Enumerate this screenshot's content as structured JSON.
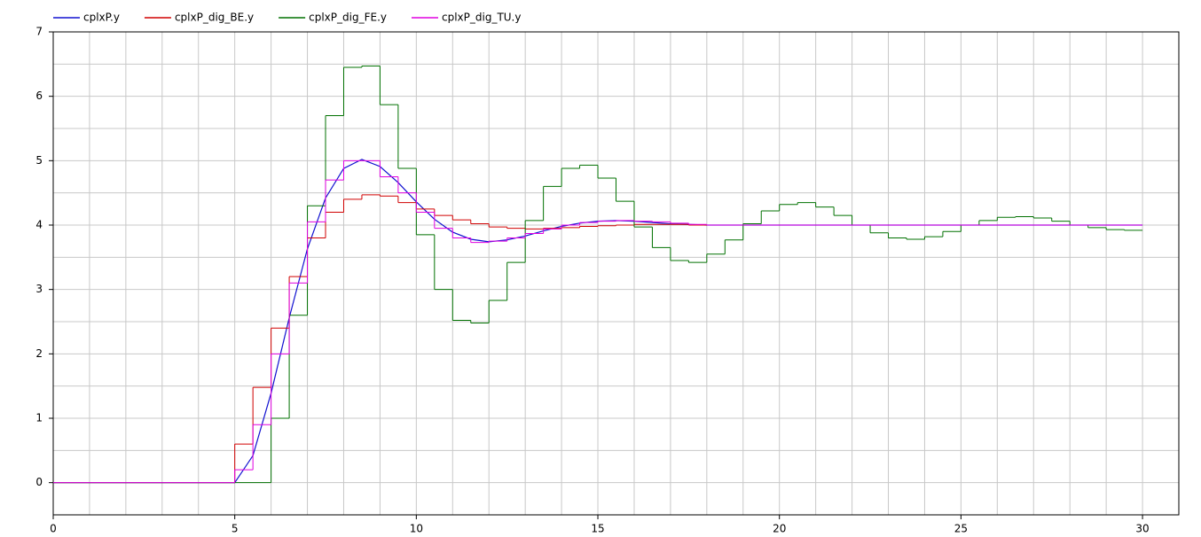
{
  "chart_data": {
    "type": "line",
    "xlim": [
      0,
      31
    ],
    "ylim": [
      -0.5,
      7
    ],
    "xticks": [
      0,
      5,
      10,
      15,
      20,
      25,
      30
    ],
    "yticks": [
      0,
      1,
      2,
      3,
      4,
      5,
      6,
      7
    ],
    "xgrid": [
      1,
      2,
      3,
      4,
      5,
      6,
      7,
      8,
      9,
      10,
      11,
      12,
      13,
      14,
      15,
      16,
      17,
      18,
      19,
      20,
      21,
      22,
      23,
      24,
      25,
      26,
      27,
      28,
      29,
      30
    ],
    "ygrid": [
      0,
      0.5,
      1,
      1.5,
      2,
      2.5,
      3,
      3.5,
      4,
      4.5,
      5,
      5.5,
      6,
      6.5
    ],
    "grid": true,
    "legend": "top-left",
    "series": [
      {
        "name": "cplxP.y",
        "color": "#1010d0",
        "x": [
          0,
          5,
          5.5,
          6,
          6.5,
          7,
          7.5,
          8,
          8.5,
          9,
          9.5,
          10,
          10.5,
          11,
          11.5,
          12,
          12.5,
          13,
          13.5,
          14,
          14.5,
          15,
          15.5,
          16,
          16.5,
          17,
          18,
          30
        ],
        "values": [
          0,
          0,
          0.42,
          1.39,
          2.56,
          3.63,
          4.42,
          4.88,
          5.02,
          4.91,
          4.66,
          4.36,
          4.09,
          3.89,
          3.78,
          3.74,
          3.77,
          3.83,
          3.91,
          3.98,
          4.03,
          4.06,
          4.07,
          4.06,
          4.04,
          4.02,
          4.0,
          4.0
        ]
      },
      {
        "name": "cplxP_dig_BE.y",
        "color": "#d00000",
        "step": true,
        "edges": [
          0,
          5,
          5.5,
          6,
          6.5,
          7,
          7.5,
          8,
          8.5,
          9,
          9.5,
          10,
          10.5,
          11,
          11.5,
          12,
          12.5,
          13,
          13.5,
          14,
          14.5,
          15,
          15.5,
          16,
          16.5,
          17,
          17.5,
          20.5
        ],
        "values": [
          0,
          0.6,
          1.48,
          2.4,
          3.2,
          3.8,
          4.2,
          4.4,
          4.47,
          4.45,
          4.35,
          4.25,
          4.15,
          4.08,
          4.02,
          3.97,
          3.95,
          3.94,
          3.95,
          3.96,
          3.98,
          3.99,
          4.0,
          4.01,
          4.01,
          4.01,
          4.0
        ]
      },
      {
        "name": "cplxP_dig_FE.y",
        "color": "#007000",
        "step": true,
        "edges": [
          0,
          6,
          6.5,
          7,
          7.5,
          8,
          8.5,
          9,
          9.5,
          10,
          10.5,
          11,
          11.5,
          12,
          12.5,
          13,
          13.5,
          14,
          14.5,
          15,
          15.5,
          16,
          16.5,
          17,
          17.5,
          18,
          18.5,
          19,
          19.5,
          20,
          20.5,
          21,
          21.5,
          22,
          22.5,
          23,
          23.5,
          24,
          24.5,
          25,
          25.5,
          26,
          26.5,
          27,
          27.5,
          28,
          28.5,
          29,
          29.5,
          30
        ],
        "values": [
          0,
          1.0,
          2.6,
          4.3,
          5.7,
          6.45,
          6.47,
          5.87,
          4.88,
          3.85,
          3.0,
          2.52,
          2.48,
          2.83,
          3.42,
          4.07,
          4.6,
          4.88,
          4.93,
          4.73,
          4.37,
          3.97,
          3.65,
          3.45,
          3.42,
          3.55,
          3.77,
          4.02,
          4.22,
          4.32,
          4.35,
          4.28,
          4.15,
          4.0,
          3.88,
          3.8,
          3.78,
          3.82,
          3.9,
          4.0,
          4.07,
          4.12,
          4.13,
          4.11,
          4.06,
          4.0,
          3.96,
          3.93,
          3.92
        ]
      },
      {
        "name": "cplxP_dig_TU.y",
        "color": "#e000e0",
        "step": true,
        "edges": [
          0,
          5,
          5.5,
          6,
          6.5,
          7,
          7.5,
          8,
          8.5,
          9,
          9.5,
          10,
          10.5,
          11,
          11.5,
          12,
          12.5,
          13,
          13.5,
          14,
          14.5,
          15,
          15.5,
          16,
          16.5,
          17,
          17.5,
          18,
          30
        ],
        "values": [
          0,
          0.2,
          0.9,
          2.0,
          3.1,
          4.05,
          4.7,
          5.0,
          5.0,
          4.75,
          4.5,
          4.2,
          3.95,
          3.8,
          3.73,
          3.75,
          3.8,
          3.87,
          3.94,
          4.0,
          4.04,
          4.06,
          4.07,
          4.06,
          4.05,
          4.03,
          4.01,
          4.0
        ]
      }
    ]
  }
}
